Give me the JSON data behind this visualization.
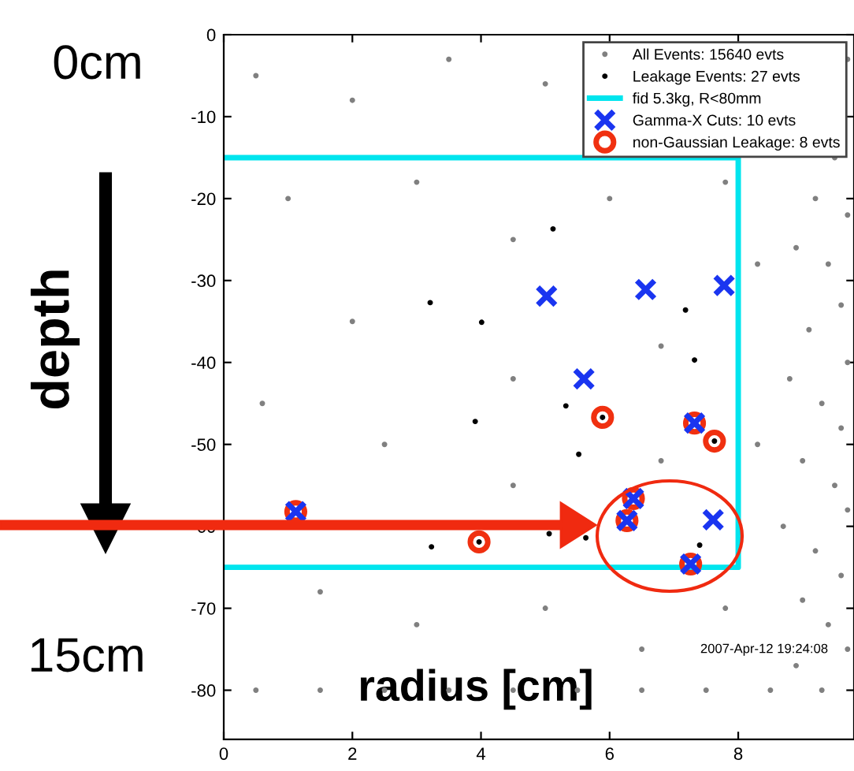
{
  "chart_data": {
    "type": "scatter",
    "xlabel": "radius [cm]",
    "xlim": [
      0,
      9.8
    ],
    "xticks": [
      0,
      2,
      4,
      6,
      8
    ],
    "ylim": [
      -86,
      0
    ],
    "yticks": [
      0,
      -10,
      -20,
      -30,
      -40,
      -50,
      -60,
      -70,
      -80
    ],
    "grid": false,
    "legend": "top right",
    "series": [
      {
        "name": "All Events: 15640 evts",
        "marker": "circle",
        "color": "#808080",
        "x": [
          9.7,
          9.5,
          9.2,
          9.7,
          8.9,
          9.4,
          9.6,
          9.1,
          9.7,
          8.8,
          9.3,
          9.6,
          9.0,
          9.5,
          9.7,
          8.7,
          9.2,
          9.6,
          9.0,
          9.4,
          9.7,
          8.9,
          9.3,
          0.5,
          1.5,
          2.5,
          3.5,
          4.5,
          5.5,
          6.5,
          7.5,
          8.5,
          0.5,
          2,
          3.5,
          5,
          1,
          3,
          4.5,
          6,
          7.8,
          2,
          0.6,
          2.5,
          4.5,
          6.8,
          8.3,
          1.5,
          3,
          5,
          6.5,
          7.8,
          8.3,
          4.5,
          6.8
        ],
        "values": [
          -3,
          -15,
          -20,
          -22,
          -26,
          -28,
          -33,
          -36,
          -40,
          -42,
          -45,
          -48,
          -52,
          -55,
          -58,
          -60,
          -63,
          -66,
          -69,
          -72,
          -75,
          -77,
          -80,
          -80,
          -80,
          -80,
          -80,
          -80,
          -80,
          -80,
          -80,
          -80,
          -5,
          -8,
          -3,
          -6,
          -20,
          -18,
          -25,
          -20,
          -18,
          -35,
          -45,
          -50,
          -42,
          -38,
          -28,
          -68,
          -72,
          -70,
          -75,
          -70,
          -50,
          -55,
          -52
        ]
      },
      {
        "name": "Leakage Events: 27 evts",
        "marker": "circle",
        "color": "#000000",
        "x": [
          5.12,
          3.21,
          4.01,
          7.18,
          7.32,
          5.32,
          3.91,
          5.52,
          5.06,
          5.63,
          3.23,
          7.4,
          3.97,
          5.89,
          7.63
        ],
        "values": [
          -23.7,
          -32.7,
          -35.1,
          -33.6,
          -39.7,
          -45.3,
          -47.2,
          -51.2,
          -60.9,
          -61.4,
          -62.5,
          -62.3,
          -61.9,
          -46.7,
          -49.6
        ]
      },
      {
        "name": "fid 5.3kg, R<80mm",
        "type": "line",
        "marker": "none",
        "line_style": "solid",
        "color": "#00e5ee",
        "x": [
          0,
          8,
          8,
          0
        ],
        "values": [
          -15,
          -15,
          -65,
          -65
        ]
      },
      {
        "name": "Gamma-X Cuts: 10 evts",
        "marker": "cross",
        "color": "#1a35f0",
        "x": [
          5.02,
          6.56,
          7.78,
          5.6,
          7.32,
          6.37,
          6.27,
          7.61,
          7.26,
          1.12
        ],
        "values": [
          -31.9,
          -31.1,
          -30.6,
          -42.0,
          -47.4,
          -56.6,
          -59.3,
          -59.2,
          -64.6,
          -58.2
        ]
      },
      {
        "name": "non-Gaussian Leakage: 8 evts",
        "marker": "circle_open",
        "color": "#f03010",
        "x": [
          1.12,
          3.97,
          5.89,
          7.32,
          7.63,
          6.37,
          6.27,
          7.26
        ],
        "values": [
          -58.2,
          -61.9,
          -46.7,
          -47.4,
          -49.6,
          -56.6,
          -59.3,
          -64.6
        ]
      }
    ],
    "annotations": [
      "0cm",
      "depth",
      "15cm",
      "2007-Apr-12 19:24:08"
    ]
  }
}
